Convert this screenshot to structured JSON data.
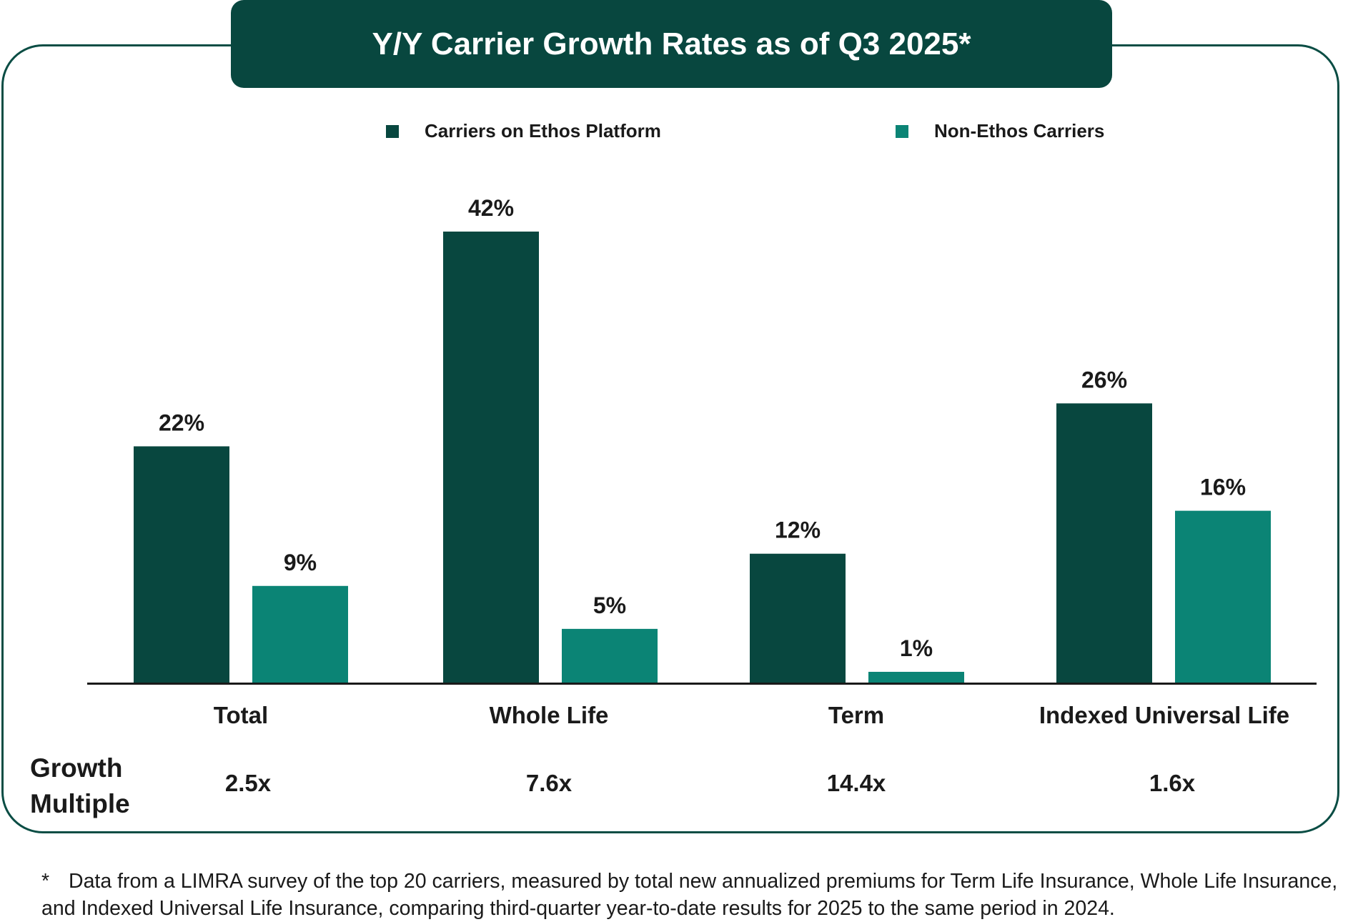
{
  "title": "Y/Y Carrier Growth Rates as of Q3 2025*",
  "legend": [
    {
      "label": "Carriers on Ethos Platform",
      "color": "#08473f"
    },
    {
      "label": "Non-Ethos Carriers",
      "color": "#0b8475"
    }
  ],
  "growth_multiple_title": "Growth Multiple",
  "growth_multiples": [
    "2.5x",
    "7.6x",
    "14.4x",
    "1.6x"
  ],
  "footnote": {
    "marker": "*",
    "text": "Data from a LIMRA survey of the top 20 carriers, measured by total new annualized premiums for Term Life Insurance, Whole Life Insurance, and Indexed Universal Life Insurance, comparing third-quarter year-to-date results for 2025 to the same period in 2024."
  },
  "chart_data": {
    "type": "bar",
    "title": "Y/Y Carrier Growth Rates as of Q3 2025*",
    "categories": [
      "Total",
      "Whole Life",
      "Term",
      "Indexed Universal Life"
    ],
    "series": [
      {
        "name": "Carriers on Ethos Platform",
        "values": [
          22,
          42,
          12,
          26
        ],
        "labels": [
          "22%",
          "42%",
          "12%",
          "26%"
        ],
        "color": "#08473f"
      },
      {
        "name": "Non-Ethos Carriers",
        "values": [
          9,
          5,
          1,
          16
        ],
        "labels": [
          "9%",
          "5%",
          "1%",
          "16%"
        ],
        "color": "#0b8475"
      }
    ],
    "xlabel": "",
    "ylabel": "",
    "ylim": [
      0,
      42
    ],
    "grid": false,
    "legend_position": "top"
  }
}
